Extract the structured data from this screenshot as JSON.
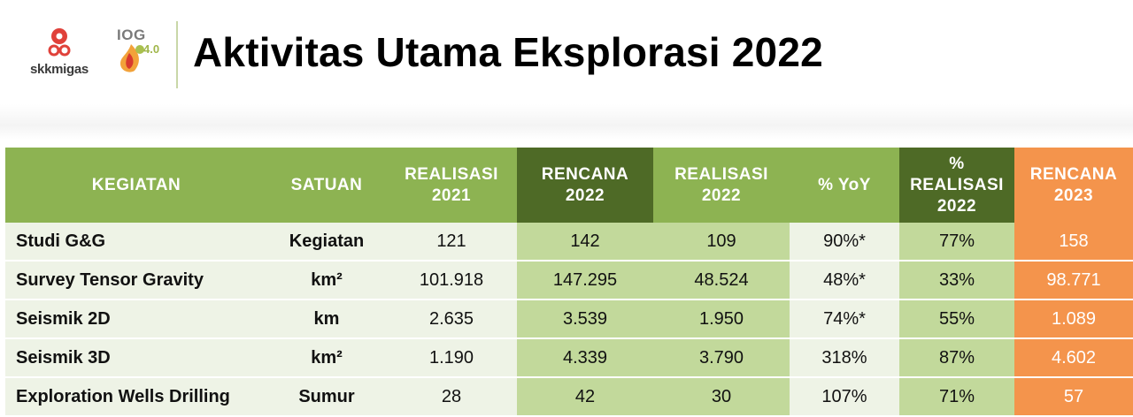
{
  "header": {
    "logo_text": "skkmigas",
    "logo2_text": "IOG",
    "logo2_version": "4.0",
    "title": "Aktivitas Utama Eksplorasi 2022"
  },
  "table": {
    "columns": [
      {
        "line1": "KEGIATAN",
        "line2": ""
      },
      {
        "line1": "SATUAN",
        "line2": ""
      },
      {
        "line1": "REALISASI",
        "line2": "2021"
      },
      {
        "line1": "RENCANA",
        "line2": "2022"
      },
      {
        "line1": "REALISASI",
        "line2": "2022"
      },
      {
        "line1": "% YoY",
        "line2": ""
      },
      {
        "line1": "%",
        "line2": "REALISASI",
        "line3": "2022"
      },
      {
        "line1": "RENCANA",
        "line2": "2023"
      }
    ],
    "rows": [
      {
        "kegiatan": "Studi G&G",
        "satuan": "Kegiatan",
        "realisasi_2021": "121",
        "rencana_2022": "142",
        "realisasi_2022": "109",
        "yoy": "90%*",
        "pct_realisasi_2022": "77%",
        "rencana_2023": "158"
      },
      {
        "kegiatan": "Survey Tensor Gravity",
        "satuan": "km²",
        "realisasi_2021": "101.918",
        "rencana_2022": "147.295",
        "realisasi_2022": "48.524",
        "yoy": "48%*",
        "pct_realisasi_2022": "33%",
        "rencana_2023": "98.771"
      },
      {
        "kegiatan": "Seismik 2D",
        "satuan": "km",
        "realisasi_2021": "2.635",
        "rencana_2022": "3.539",
        "realisasi_2022": "1.950",
        "yoy": "74%*",
        "pct_realisasi_2022": "55%",
        "rencana_2023": "1.089"
      },
      {
        "kegiatan": "Seismik 3D",
        "satuan": "km²",
        "realisasi_2021": "1.190",
        "rencana_2022": "4.339",
        "realisasi_2022": "3.790",
        "yoy": "318%",
        "pct_realisasi_2022": "87%",
        "rencana_2023": "4.602"
      },
      {
        "kegiatan": "Exploration Wells Drilling",
        "satuan": "Sumur",
        "realisasi_2021": "28",
        "rencana_2022": "42",
        "realisasi_2022": "30",
        "yoy": "107%",
        "pct_realisasi_2022": "71%",
        "rencana_2023": "57"
      }
    ]
  },
  "colors": {
    "header_light": "#8db352",
    "header_dark": "#4e6a26",
    "header_orange": "#f4944c",
    "cell_light": "#eef3e6",
    "cell_mid": "#c2d99b"
  }
}
